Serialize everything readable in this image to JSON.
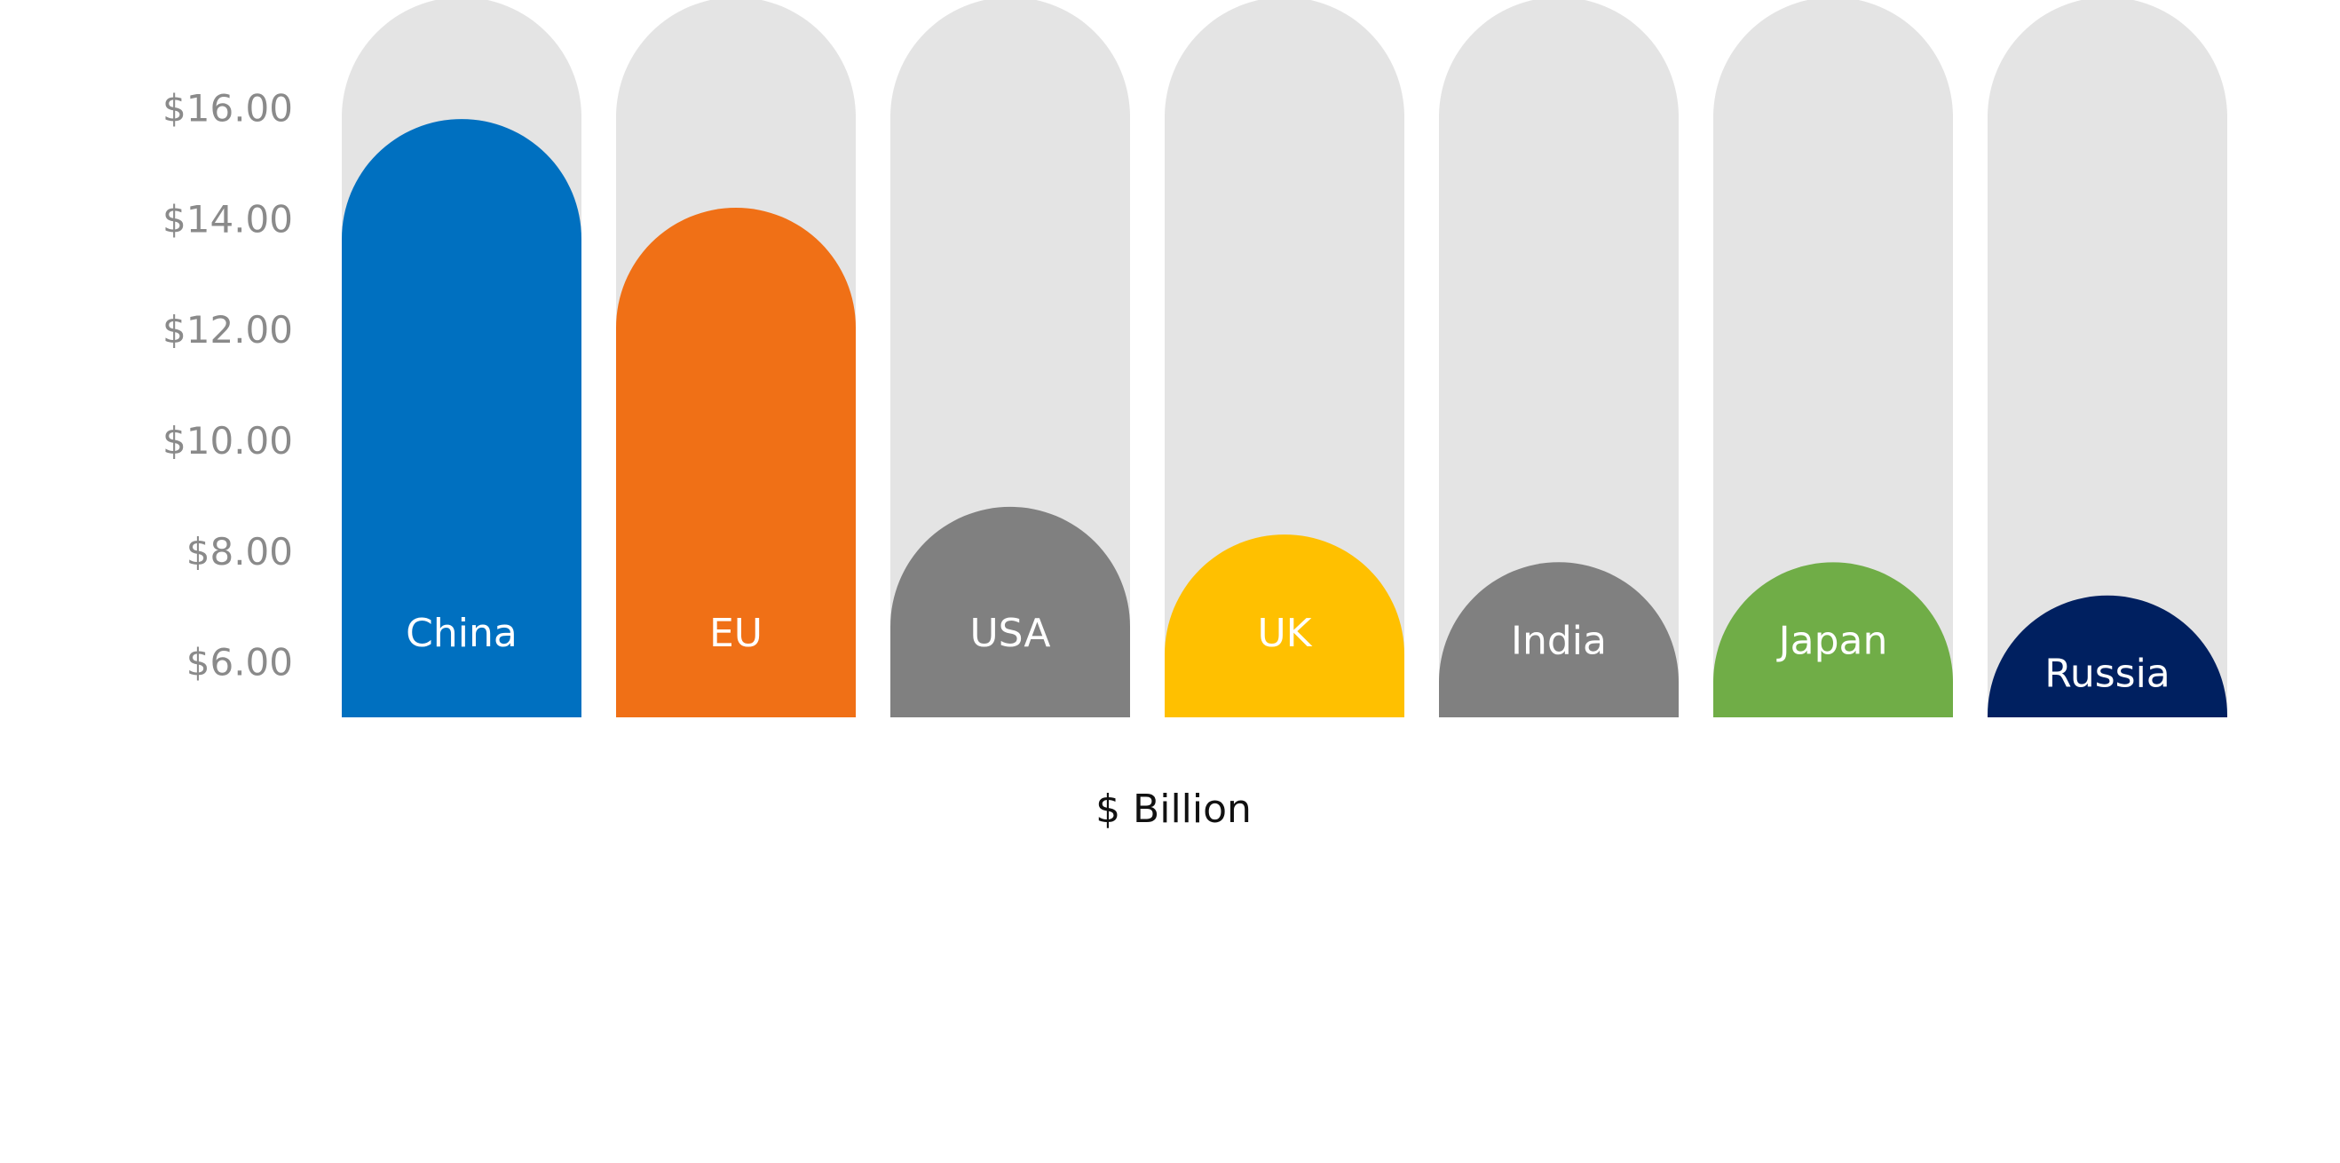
{
  "chart_data": {
    "type": "bar",
    "categories": [
      "China",
      "EU",
      "USA",
      "UK",
      "India",
      "Japan",
      "Russia"
    ],
    "values": [
      15.8,
      14.2,
      8.8,
      8.3,
      7.8,
      7.8,
      7.2
    ],
    "colors": [
      "#0070c0",
      "#f07016",
      "#808080",
      "#ffc000",
      "#808080",
      "#70ad47",
      "#002060"
    ],
    "track_color": "#e4e4e4",
    "max_track_value": 18.0,
    "title": "",
    "xlabel": "$ Billion",
    "ylabel": "",
    "ylim": [
      5.0,
      18.0
    ],
    "yticks": [
      6,
      8,
      10,
      12,
      14,
      16
    ],
    "ytick_labels": [
      "$6.00",
      "$8.00",
      "$10.00",
      "$12.00",
      "$14.00",
      "$16.00"
    ],
    "grid": false,
    "legend": "none"
  }
}
